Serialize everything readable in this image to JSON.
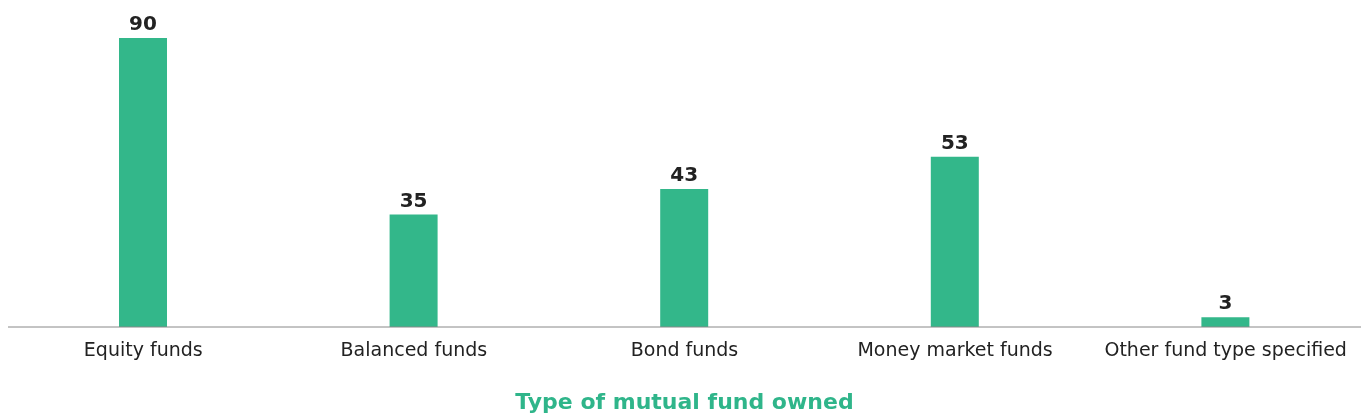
{
  "chart_data": {
    "type": "bar",
    "xlabel": "Type of mutual fund owned",
    "categories": [
      "Equity funds",
      "Balanced funds",
      "Bond funds",
      "Money market funds",
      "Other fund type specified"
    ],
    "values": [
      90,
      35,
      43,
      53,
      3
    ],
    "color": "#33b78a",
    "data_labels": true
  }
}
